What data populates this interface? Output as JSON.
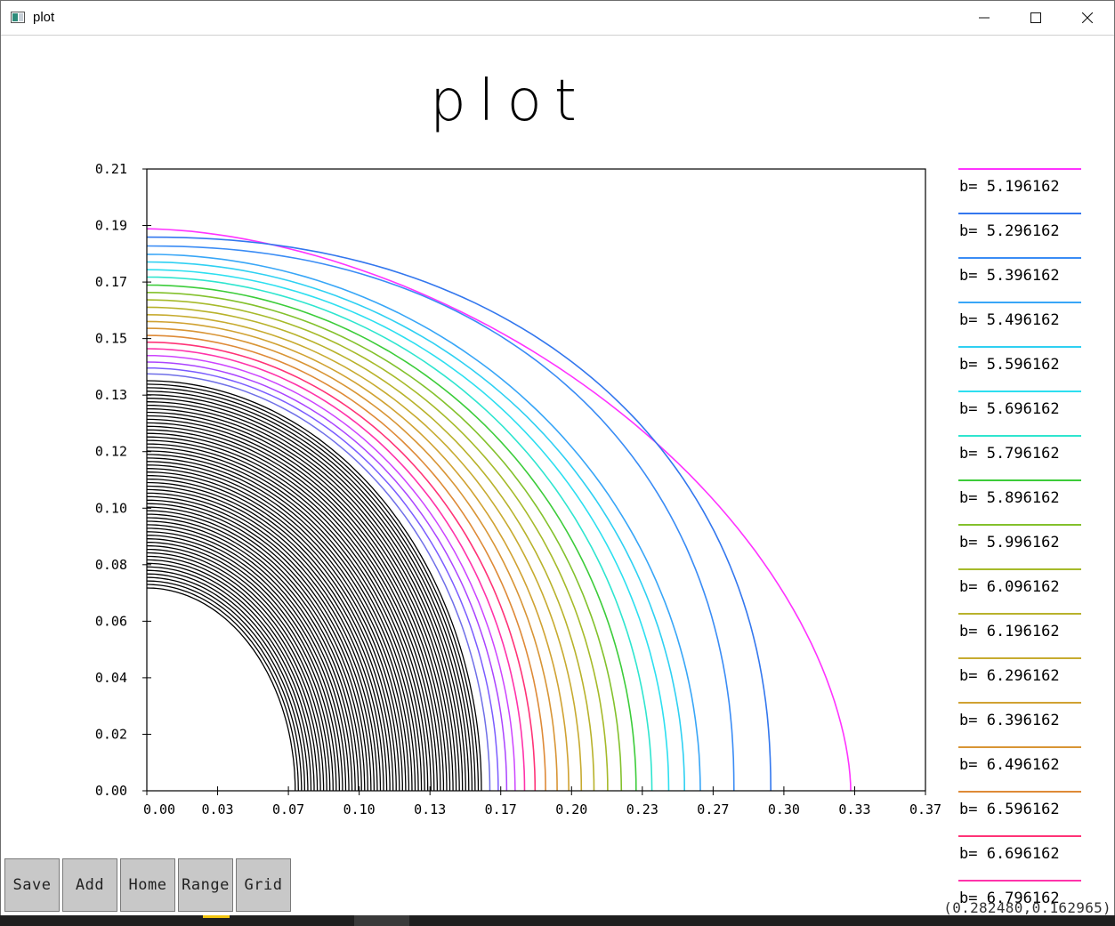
{
  "window": {
    "title": "plot",
    "minimize_label": "─",
    "maximize_label": "☐",
    "close_label": "✕"
  },
  "toolbar": {
    "buttons": [
      "Save",
      "Add",
      "Home",
      "Range",
      "Grid"
    ]
  },
  "status": {
    "coordinates": "(0.282480,0.162965)"
  },
  "colors": {
    "frame": "#000000",
    "background": "#ffffff",
    "button_face": "#c8c8c8",
    "dense_curves": "#000000"
  },
  "chart_data": {
    "type": "line",
    "title": "plot",
    "xlabel": "",
    "ylabel": "",
    "xlim": [
      0.0,
      0.37
    ],
    "ylim": [
      0.0,
      0.21
    ],
    "x_ticks": [
      "0.00",
      "0.03",
      "0.07",
      "0.10",
      "0.13",
      "0.17",
      "0.20",
      "0.23",
      "0.27",
      "0.30",
      "0.33",
      "0.37"
    ],
    "y_ticks": [
      "0.00",
      "0.02",
      "0.04",
      "0.06",
      "0.08",
      "0.10",
      "0.12",
      "0.13",
      "0.15",
      "0.17",
      "0.19",
      "0.21"
    ],
    "grid": false,
    "legend_position": "right",
    "curve_shape": "quarter-oval from (0, y_intercept) to (x_intercept, 0); outer curve straightens toward the x-axis",
    "series": [
      {
        "name": "b= 5.196162",
        "color": "#ff33ff",
        "x_intercept": 0.3345,
        "y_intercept": 0.1898
      },
      {
        "name": "b= 5.296162",
        "color": "#3377ee",
        "x_intercept": 0.2965,
        "y_intercept": 0.187
      },
      {
        "name": "b= 5.396162",
        "color": "#3a8cf5",
        "x_intercept": 0.279,
        "y_intercept": 0.184
      },
      {
        "name": "b= 5.496162",
        "color": "#38a6f7",
        "x_intercept": 0.263,
        "y_intercept": 0.1812
      },
      {
        "name": "b= 5.596162",
        "color": "#2fd0f2",
        "x_intercept": 0.2555,
        "y_intercept": 0.1786
      },
      {
        "name": "b= 5.696162",
        "color": "#2ddff0",
        "x_intercept": 0.248,
        "y_intercept": 0.176
      },
      {
        "name": "b= 5.796162",
        "color": "#2fe5cf",
        "x_intercept": 0.24,
        "y_intercept": 0.1735
      },
      {
        "name": "b= 5.896162",
        "color": "#3ccc3a",
        "x_intercept": 0.2325,
        "y_intercept": 0.1708
      },
      {
        "name": "b= 5.996162",
        "color": "#83c12c",
        "x_intercept": 0.2255,
        "y_intercept": 0.1683
      },
      {
        "name": "b= 6.096162",
        "color": "#a6ba2a",
        "x_intercept": 0.219,
        "y_intercept": 0.1658
      },
      {
        "name": "b= 6.196162",
        "color": "#b8b22b",
        "x_intercept": 0.2125,
        "y_intercept": 0.1633
      },
      {
        "name": "b= 6.296162",
        "color": "#c7ab30",
        "x_intercept": 0.2065,
        "y_intercept": 0.1608
      },
      {
        "name": "b= 6.396162",
        "color": "#d0a232",
        "x_intercept": 0.2005,
        "y_intercept": 0.1585
      },
      {
        "name": "b= 6.496162",
        "color": "#d89535",
        "x_intercept": 0.195,
        "y_intercept": 0.1562
      },
      {
        "name": "b= 6.596162",
        "color": "#de8a37",
        "x_intercept": 0.1895,
        "y_intercept": 0.1538
      },
      {
        "name": "b= 6.696162",
        "color": "#ff3377",
        "x_intercept": 0.1845,
        "y_intercept": 0.1515
      },
      {
        "name": "b= 6.796162",
        "color": "#ff33aa",
        "x_intercept": 0.1795,
        "y_intercept": 0.1493
      }
    ],
    "unlabeled_series": [
      {
        "color": "#cc44ff",
        "x_intercept": 0.175,
        "y_intercept": 0.147
      },
      {
        "color": "#aa44ff",
        "x_intercept": 0.171,
        "y_intercept": 0.1448
      },
      {
        "color": "#7a5cff",
        "x_intercept": 0.167,
        "y_intercept": 0.1428
      },
      {
        "color": "#6f6fe8",
        "x_intercept": 0.163,
        "y_intercept": 0.1408
      }
    ],
    "dense_family": {
      "color": "#000000",
      "x_intercept_range": [
        0.0705,
        0.159
      ],
      "y_intercept_range": [
        0.0685,
        0.1385
      ]
    },
    "visible_legend_entries": 17
  }
}
